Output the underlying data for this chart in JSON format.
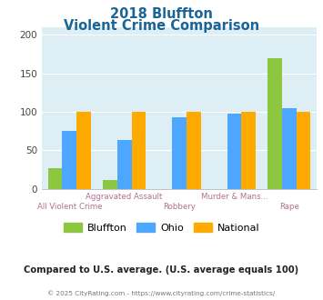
{
  "title_line1": "2018 Bluffton",
  "title_line2": "Violent Crime Comparison",
  "categories": [
    "All Violent Crime",
    "Aggravated Assault",
    "Robbery",
    "Murder & Mans...",
    "Rape"
  ],
  "bluffton": [
    27,
    12,
    0,
    0,
    170
  ],
  "ohio": [
    75,
    63,
    93,
    98,
    105
  ],
  "national": [
    100,
    100,
    100,
    100,
    100
  ],
  "bluffton_color": "#8dc63f",
  "ohio_color": "#4da6ff",
  "national_color": "#ffaa00",
  "title_color": "#1a6496",
  "xlabel_color_top": "#b07090",
  "xlabel_color_bot": "#b07090",
  "background_color": "#ddeef5",
  "fig_background": "#ffffff",
  "ylim": [
    0,
    210
  ],
  "yticks": [
    0,
    50,
    100,
    150,
    200
  ],
  "subtitle_note": "Compared to U.S. average. (U.S. average equals 100)",
  "footer_text": "© 2025 CityRating.com - https://www.cityrating.com/crime-statistics/",
  "legend_labels": [
    "Bluffton",
    "Ohio",
    "National"
  ]
}
